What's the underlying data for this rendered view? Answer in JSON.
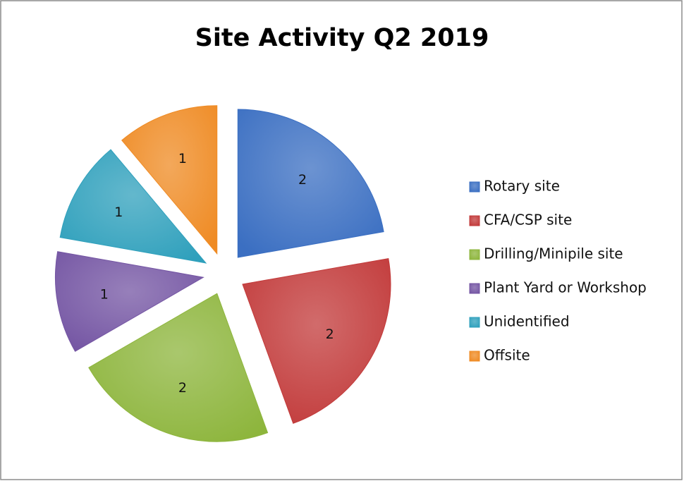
{
  "chart_data": {
    "type": "pie",
    "title": "Site Activity Q2 2019",
    "categories": [
      "Rotary site",
      "CFA/CSP site",
      "Drilling/Minipile site",
      "Plant Yard or Workshop",
      "Unidentified",
      "Offsite"
    ],
    "values": [
      2,
      2,
      2,
      1,
      1,
      1
    ],
    "colors": [
      "#3b6fc2",
      "#c23a3a",
      "#8db53c",
      "#7455a3",
      "#2fa0bc",
      "#ef8b24"
    ],
    "legend": "right"
  }
}
